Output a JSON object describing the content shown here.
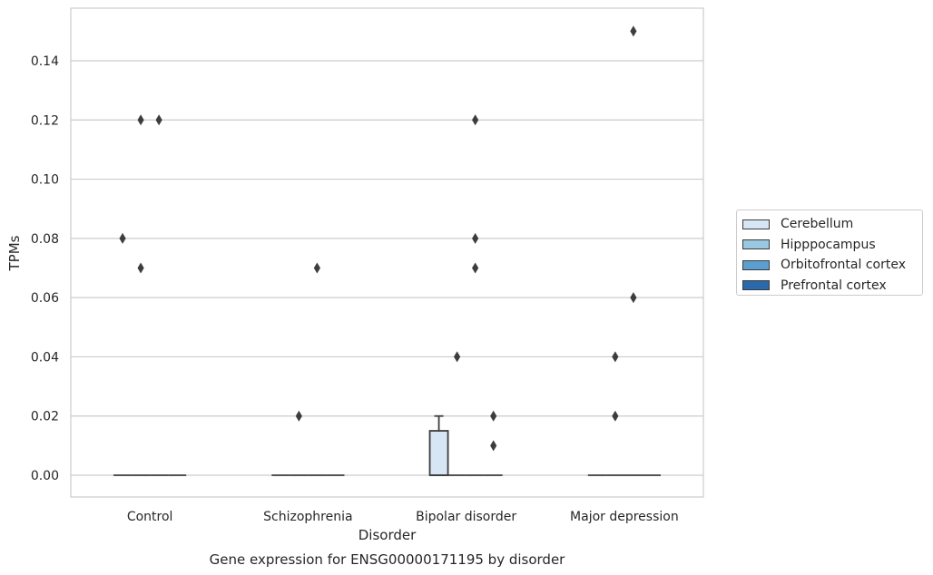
{
  "chart_data": {
    "type": "box",
    "title": "",
    "caption": "Gene expression for ENSG00000171195 by disorder",
    "xlabel": "Disorder",
    "ylabel": "TPMs",
    "ylim": [
      -0.007,
      0.157
    ],
    "yticks": [
      "0.00",
      "0.02",
      "0.04",
      "0.06",
      "0.08",
      "0.10",
      "0.12",
      "0.14"
    ],
    "grid": true,
    "legend_position": "right",
    "categories": [
      "Control",
      "Schizophrenia",
      "Bipolar disorder",
      "Major depression"
    ],
    "series": [
      {
        "name": "Cerebellum",
        "color": "#d6e6f4",
        "boxes": [
          {
            "q1": 0,
            "median": 0,
            "q3": 0,
            "whisker_low": 0,
            "whisker_high": 0,
            "outliers": [
              0.08
            ]
          },
          {
            "q1": 0,
            "median": 0,
            "q3": 0,
            "whisker_low": 0,
            "whisker_high": 0,
            "outliers": []
          },
          {
            "q1": 0,
            "median": 0,
            "q3": 0.015,
            "whisker_low": 0,
            "whisker_high": 0.02,
            "outliers": []
          },
          {
            "q1": 0,
            "median": 0,
            "q3": 0,
            "whisker_low": 0,
            "whisker_high": 0,
            "outliers": []
          }
        ]
      },
      {
        "name": "Hipppocampus",
        "color": "#9ac8e0",
        "boxes": [
          {
            "q1": 0,
            "median": 0,
            "q3": 0,
            "whisker_low": 0,
            "whisker_high": 0,
            "outliers": [
              0.07,
              0.12
            ]
          },
          {
            "q1": 0,
            "median": 0,
            "q3": 0,
            "whisker_low": 0,
            "whisker_high": 0,
            "outliers": [
              0.02
            ]
          },
          {
            "q1": 0,
            "median": 0,
            "q3": 0,
            "whisker_low": 0,
            "whisker_high": 0,
            "outliers": [
              0.04
            ]
          },
          {
            "q1": 0,
            "median": 0,
            "q3": 0,
            "whisker_low": 0,
            "whisker_high": 0,
            "outliers": [
              0.02,
              0.04
            ]
          }
        ]
      },
      {
        "name": "Orbitofrontal cortex",
        "color": "#5a9fcf",
        "boxes": [
          {
            "q1": 0,
            "median": 0,
            "q3": 0,
            "whisker_low": 0,
            "whisker_high": 0,
            "outliers": [
              0.12
            ]
          },
          {
            "q1": 0,
            "median": 0,
            "q3": 0,
            "whisker_low": 0,
            "whisker_high": 0,
            "outliers": [
              0.07
            ]
          },
          {
            "q1": 0,
            "median": 0,
            "q3": 0,
            "whisker_low": 0,
            "whisker_high": 0,
            "outliers": [
              0.07,
              0.08,
              0.12
            ]
          },
          {
            "q1": 0,
            "median": 0,
            "q3": 0,
            "whisker_low": 0,
            "whisker_high": 0,
            "outliers": [
              0.06,
              0.15
            ]
          }
        ]
      },
      {
        "name": "Prefrontal cortex",
        "color": "#2a6aac",
        "boxes": [
          {
            "q1": 0,
            "median": 0,
            "q3": 0,
            "whisker_low": 0,
            "whisker_high": 0,
            "outliers": []
          },
          {
            "q1": 0,
            "median": 0,
            "q3": 0,
            "whisker_low": 0,
            "whisker_high": 0,
            "outliers": []
          },
          {
            "q1": 0,
            "median": 0,
            "q3": 0,
            "whisker_low": 0,
            "whisker_high": 0,
            "outliers": [
              0.01,
              0.02
            ]
          },
          {
            "q1": 0,
            "median": 0,
            "q3": 0,
            "whisker_low": 0,
            "whisker_high": 0,
            "outliers": []
          }
        ]
      }
    ]
  }
}
